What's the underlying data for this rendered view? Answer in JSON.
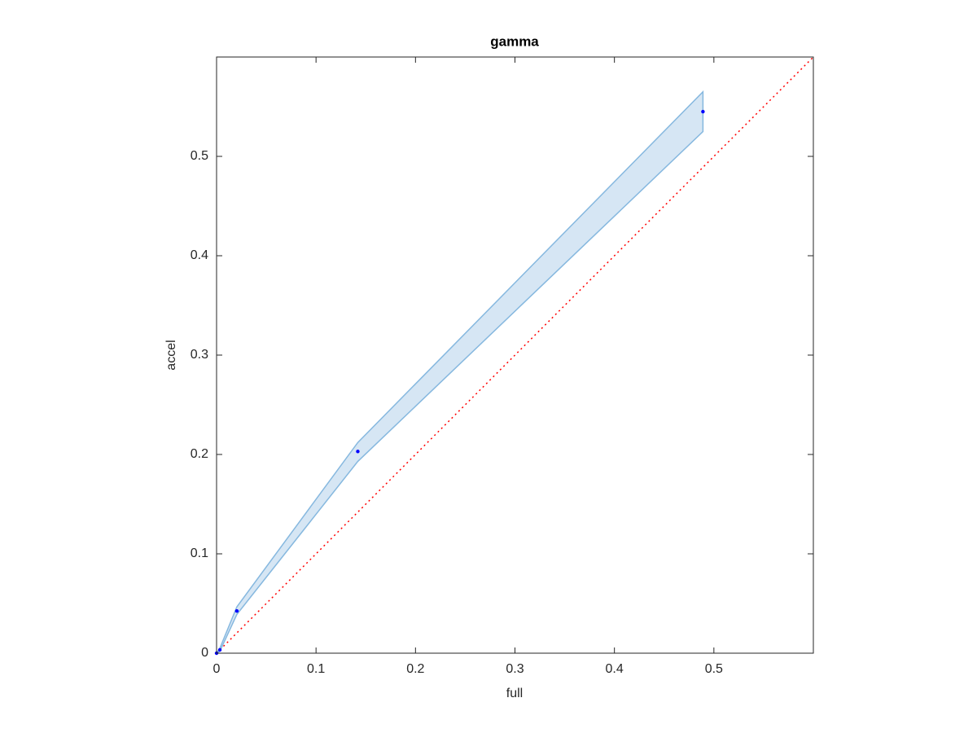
{
  "chart_data": {
    "type": "scatter",
    "title": "gamma",
    "xlabel": "full",
    "ylabel": "accel",
    "x": [
      0,
      0.0033,
      0.0204,
      0.142,
      0.489
    ],
    "values": [
      0,
      0.0033,
      0.0425,
      0.203,
      0.545
    ],
    "lower": [
      0,
      0.002,
      0.039,
      0.193,
      0.525
    ],
    "upper": [
      0,
      0.005,
      0.0466,
      0.212,
      0.565
    ],
    "color": "#0000ff",
    "band_color": "#d6e6f4",
    "band_edge_color": "#86b8df",
    "reference_line": {
      "x": [
        0,
        0.6
      ],
      "y": [
        0,
        0.6
      ],
      "color": "#ff0000",
      "style": "dotted"
    },
    "xlim": [
      0,
      0.6
    ],
    "ylim": [
      0,
      0.6
    ],
    "xticks": [
      0,
      0.1,
      0.2,
      0.3,
      0.4,
      0.5
    ],
    "yticks": [
      0,
      0.1,
      0.2,
      0.3,
      0.4,
      0.5
    ]
  }
}
